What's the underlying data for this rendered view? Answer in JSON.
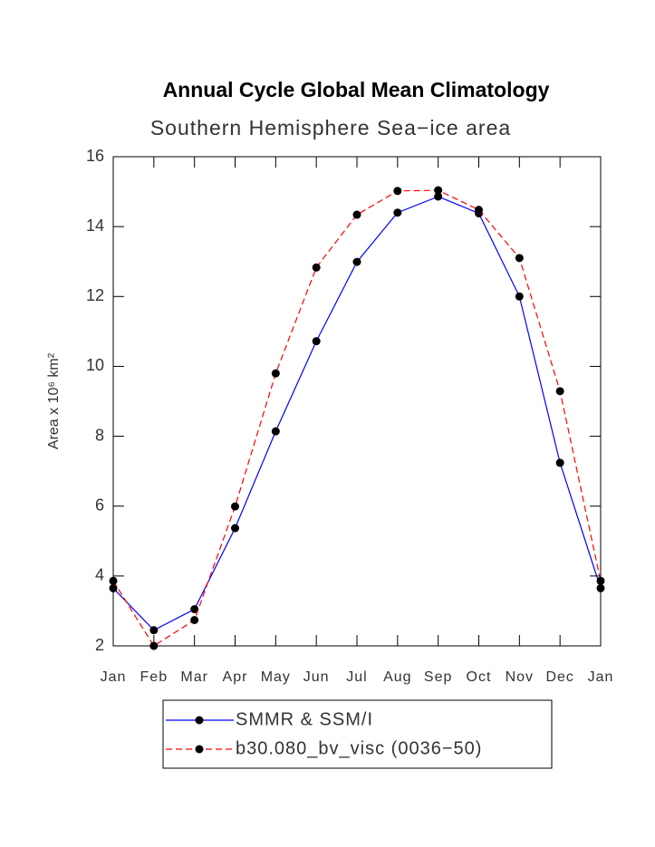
{
  "chart_data": {
    "type": "line",
    "title": "Annual Cycle Global Mean Climatology",
    "subtitle": "Southern Hemisphere Sea−ice area",
    "y_label": "Area x 10⁶ km²",
    "categories": [
      "Jan",
      "Feb",
      "Mar",
      "Apr",
      "May",
      "Jun",
      "Jul",
      "Aug",
      "Sep",
      "Oct",
      "Nov",
      "Dec",
      "Jan"
    ],
    "series": [
      {
        "name": "SMMR & SSM/I",
        "color": "#0000ff",
        "dash": false,
        "values": [
          3.65,
          2.45,
          3.05,
          5.37,
          8.14,
          10.72,
          12.99,
          14.4,
          14.86,
          14.38,
          12.0,
          7.24,
          3.65
        ]
      },
      {
        "name": "b30.080_bv_visc (0036−50)",
        "color": "#ff0000",
        "dash": true,
        "values": [
          3.86,
          2.0,
          2.74,
          5.99,
          9.8,
          12.83,
          14.34,
          15.02,
          15.04,
          14.48,
          13.1,
          9.29,
          3.86
        ]
      }
    ],
    "ylim": [
      2,
      16
    ],
    "yticks": [
      2,
      4,
      6,
      8,
      10,
      12,
      14,
      16
    ]
  }
}
